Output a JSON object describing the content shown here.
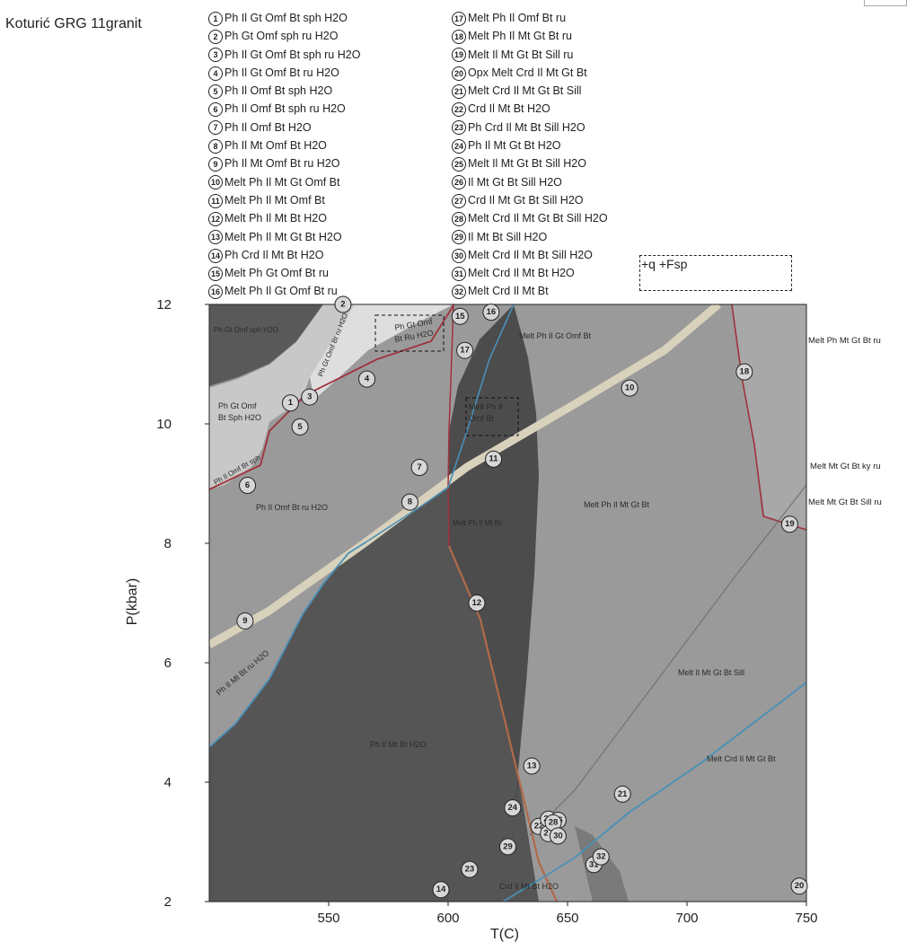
{
  "title": "Koturić GRG 11granit",
  "legend_left": [
    {
      "num": "1",
      "text": "Ph Il Gt Omf Bt sph H2O"
    },
    {
      "num": "2",
      "text": "Ph Gt Omf sph ru H2O"
    },
    {
      "num": "3",
      "text": "Ph Il Gt Omf Bt sph ru H2O"
    },
    {
      "num": "4",
      "text": "Ph Il Gt Omf Bt ru H2O"
    },
    {
      "num": "5",
      "text": "Ph Il Omf Bt sph H2O"
    },
    {
      "num": "6",
      "text": "Ph Il Omf Bt sph ru H2O"
    },
    {
      "num": "7",
      "text": "Ph Il Omf Bt H2O"
    },
    {
      "num": "8",
      "text": "Ph Il Mt Omf Bt H2O"
    },
    {
      "num": "9",
      "text": "Ph Il Mt Omf Bt ru H2O"
    },
    {
      "num": "10",
      "text": "Melt Ph Il Mt Gt Omf Bt"
    },
    {
      "num": "11",
      "text": "Melt Ph Il Mt Omf Bt"
    },
    {
      "num": "12",
      "text": "Melt Ph Il Mt Bt H2O"
    },
    {
      "num": "13",
      "text": "Melt Ph Il Mt Gt Bt H2O"
    },
    {
      "num": "14",
      "text": "Ph Crd Il Mt Bt H2O"
    },
    {
      "num": "15",
      "text": "Melt Ph Gt Omf Bt ru"
    },
    {
      "num": "16",
      "text": "Melt Ph Il Gt Omf Bt ru"
    }
  ],
  "legend_right": [
    {
      "num": "17",
      "text": "Melt Ph Il Omf Bt ru"
    },
    {
      "num": "18",
      "text": "Melt Ph Il Mt Gt Bt ru"
    },
    {
      "num": "19",
      "text": "Melt Il Mt Gt Bt Sill ru"
    },
    {
      "num": "20",
      "text": "Opx Melt Crd Il Mt Gt Bt"
    },
    {
      "num": "21",
      "text": "Melt Crd Il Mt Gt Bt Sill"
    },
    {
      "num": "22",
      "text": "Crd Il Mt Bt  H2O"
    },
    {
      "num": "23",
      "text": "Ph Crd Il Mt Bt Sill H2O"
    },
    {
      "num": "24",
      "text": "Ph Il Mt Gt Bt H2O"
    },
    {
      "num": "25",
      "text": "Melt Il Mt Gt Bt Sill H2O"
    },
    {
      "num": "26",
      "text": "Il Mt Gt Bt Sill H2O"
    },
    {
      "num": "27",
      "text": "Crd Il Mt Gt Bt Sill H2O"
    },
    {
      "num": "28",
      "text": "Melt Crd Il Mt Gt Bt Sill H2O"
    },
    {
      "num": "29",
      "text": "Il Mt Bt Sill H2O"
    },
    {
      "num": "30",
      "text": "Melt Crd Il Mt Bt Sill H2O"
    },
    {
      "num": "31",
      "text": "Melt Crd Il Mt Bt H2O"
    },
    {
      "num": "32",
      "text": "Melt Crd Il Mt Bt"
    }
  ],
  "extra_phases": "+q +Fsp",
  "axes": {
    "xlabel": "T(C)",
    "ylabel": "P(kbar)",
    "xlim": [
      500,
      750
    ],
    "ylim": [
      2,
      12
    ],
    "xticks": [
      550,
      600,
      650,
      700,
      750
    ],
    "yticks": [
      2,
      4,
      6,
      8,
      10,
      12
    ]
  },
  "colors": {
    "dark": "#555555",
    "darkest": "#4c4c4c",
    "medium": "#9a9a9a",
    "light": "#c8c8c8",
    "lightest": "#dcdcdc",
    "beige": "#d8d2bc",
    "red_line": "#a0323c",
    "blue_line": "#4a90b8"
  },
  "field_labels": [
    {
      "id": "f1",
      "text": "Ph Gt Omf sph H2O"
    },
    {
      "id": "f2",
      "text": "Ph Gt Omf"
    },
    {
      "id": "f2b",
      "text": "Bt Sph H2O"
    },
    {
      "id": "f3",
      "text": "Ph Il Omf Bt ru H2O"
    },
    {
      "id": "f4",
      "text": "Ph Il Mt Bt ru H2O"
    },
    {
      "id": "f5",
      "text": "Ph Il Mt Bt H2O"
    },
    {
      "id": "f6",
      "text": "Melt Ph Il Gt Omf Bt"
    },
    {
      "id": "f7",
      "text": "Melt Ph Il Mt Bt"
    },
    {
      "id": "f8",
      "text": "Melt Ph Il Mt Gt Bt"
    },
    {
      "id": "f9",
      "text": "Melt Il Mt Gt Bt Sill"
    },
    {
      "id": "f10",
      "text": "Melt Crd Il Mt Gt Bt"
    },
    {
      "id": "f11",
      "text": "Crd Il Mt Bt H2O"
    },
    {
      "id": "f12",
      "text": "Ph Gt Omf"
    },
    {
      "id": "f12b",
      "text": "Bt Ru H2O"
    },
    {
      "id": "f13",
      "text": "Melt Ph Il"
    },
    {
      "id": "f13b",
      "text": "Omf Bt"
    },
    {
      "id": "f14",
      "text": "Melt Ph Mt Gt Bt ru"
    },
    {
      "id": "f15",
      "text": "Melt Mt Gt Bt ky ru"
    },
    {
      "id": "f16",
      "text": "Melt Mt Gt Bt Sill ru"
    },
    {
      "id": "f17",
      "text": "Ph Gt Omf Bt ru H2O"
    },
    {
      "id": "f18",
      "text": "Ph Il Omf Bt sph"
    }
  ],
  "region_numbers": [
    {
      "n": "1",
      "T": 534,
      "P": 10.35
    },
    {
      "n": "2",
      "T": 556,
      "P": 12.0
    },
    {
      "n": "3",
      "T": 542,
      "P": 10.45
    },
    {
      "n": "4",
      "T": 566,
      "P": 10.75
    },
    {
      "n": "5",
      "T": 538,
      "P": 9.95
    },
    {
      "n": "6",
      "T": 516,
      "P": 8.97
    },
    {
      "n": "7",
      "T": 588,
      "P": 9.27
    },
    {
      "n": "8",
      "T": 584,
      "P": 8.69
    },
    {
      "n": "9",
      "T": 515,
      "P": 6.7
    },
    {
      "n": "10",
      "T": 676,
      "P": 10.6
    },
    {
      "n": "11",
      "T": 619,
      "P": 9.41
    },
    {
      "n": "12",
      "T": 612,
      "P": 7.0
    },
    {
      "n": "13",
      "T": 635,
      "P": 4.27
    },
    {
      "n": "14",
      "T": 597,
      "P": 2.2
    },
    {
      "n": "15",
      "T": 605,
      "P": 11.8
    },
    {
      "n": "16",
      "T": 618,
      "P": 11.87
    },
    {
      "n": "17",
      "T": 607,
      "P": 11.23
    },
    {
      "n": "18",
      "T": 724,
      "P": 10.87
    },
    {
      "n": "19",
      "T": 743,
      "P": 8.32
    },
    {
      "n": "20",
      "T": 747,
      "P": 2.26
    },
    {
      "n": "21",
      "T": 673,
      "P": 3.8
    },
    {
      "n": "22",
      "T": 638,
      "P": 3.26
    },
    {
      "n": "23",
      "T": 609,
      "P": 2.54
    },
    {
      "n": "24",
      "T": 627,
      "P": 3.57
    },
    {
      "n": "25",
      "T": 642,
      "P": 3.38
    },
    {
      "n": "26",
      "T": 646,
      "P": 3.36
    },
    {
      "n": "27",
      "T": 642,
      "P": 3.14
    },
    {
      "n": "28",
      "T": 644,
      "P": 3.32
    },
    {
      "n": "29",
      "T": 625,
      "P": 2.92
    },
    {
      "n": "30",
      "T": 646,
      "P": 3.1
    },
    {
      "n": "31",
      "T": 661,
      "P": 2.62
    },
    {
      "n": "32",
      "T": 664,
      "P": 2.75
    }
  ]
}
